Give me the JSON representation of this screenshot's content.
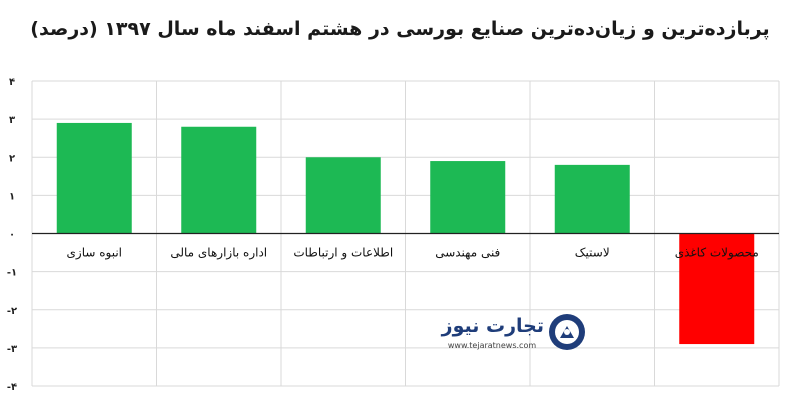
{
  "chart_data": {
    "type": "bar",
    "title": "پربازده‌ترین و زیان‌ده‌ترین صنایع بورسی در هشتم اسفند ماه سال ۱۳۹۷ (درصد)",
    "categories": [
      "انبوه سازی",
      "اداره بازارهای مالی",
      "اطلاعات و ارتباطات",
      "فنی مهندسی",
      "لاستیک",
      "محصولات کاغذی"
    ],
    "values": [
      2.9,
      2.8,
      2.0,
      1.9,
      1.8,
      -2.9
    ],
    "ylim": [
      -4,
      4
    ],
    "yticks": [
      "۴",
      "۳",
      "۲",
      "۱",
      "۰",
      "-۱",
      "-۲",
      "-۳",
      "-۴"
    ],
    "grid": true,
    "colors": {
      "positive": "#1db954",
      "negative": "#ff0000",
      "grid": "#d9d9d9"
    }
  },
  "watermark": {
    "name": "تجارت نیوز",
    "url": "www.tejaratnews.com"
  }
}
